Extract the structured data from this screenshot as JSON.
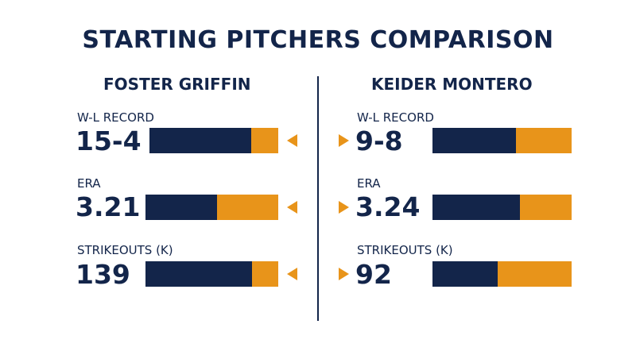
{
  "title": "STARTING PITCHERS COMPARISON",
  "colors": {
    "navy": "#13254a",
    "gold": "#e8941a"
  },
  "left": {
    "name": "FOSTER GRIFFIN",
    "stats": [
      {
        "label": "W-L RECORD",
        "value": "15-4",
        "navy_fraction": 0.79
      },
      {
        "label": "ERA",
        "value": "3.21",
        "navy_fraction": 0.54
      },
      {
        "label": "STRIKEOUTS (K)",
        "value": "139",
        "navy_fraction": 0.8
      }
    ]
  },
  "right": {
    "name": "KEIDER MONTERO",
    "stats": [
      {
        "label": "W-L RECORD",
        "value": "9-8",
        "navy_fraction": 0.6
      },
      {
        "label": "ERA",
        "value": "3.24",
        "navy_fraction": 0.63
      },
      {
        "label": "STRIKEOUTS (K)",
        "value": "92",
        "navy_fraction": 0.47
      }
    ]
  }
}
